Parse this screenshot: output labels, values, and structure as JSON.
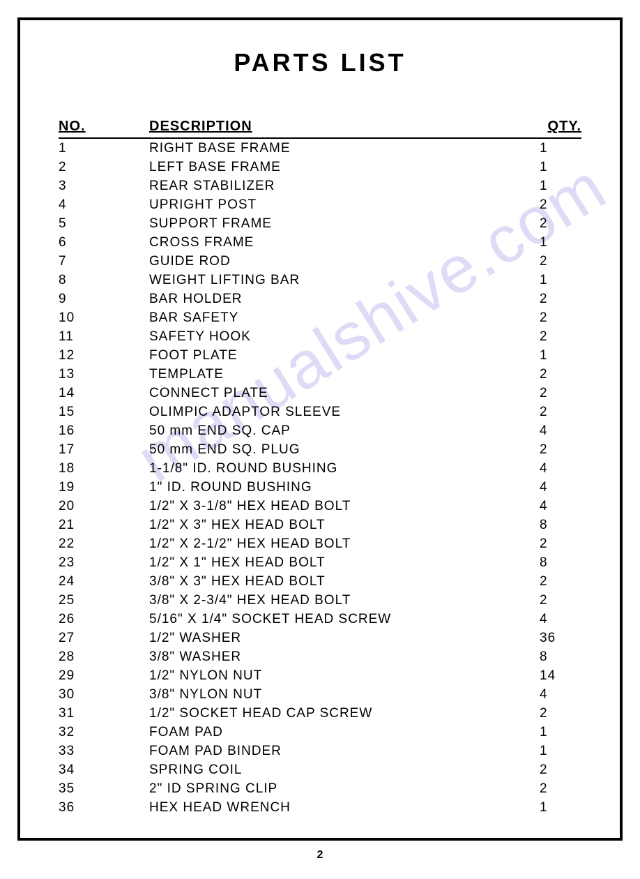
{
  "title": "PARTS  LIST",
  "columns": {
    "no": "NO.",
    "description": "DESCRIPTION",
    "qty": "QTY."
  },
  "rows": [
    {
      "no": "1",
      "description": "RIGHT BASE FRAME",
      "qty": "1"
    },
    {
      "no": "2",
      "description": "LEFT BASE FRAME",
      "qty": "1"
    },
    {
      "no": "3",
      "description": "REAR STABILIZER",
      "qty": "1"
    },
    {
      "no": "4",
      "description": "UPRIGHT POST",
      "qty": "2"
    },
    {
      "no": "5",
      "description": "SUPPORT FRAME",
      "qty": "2"
    },
    {
      "no": "6",
      "description": "CROSS FRAME",
      "qty": "1"
    },
    {
      "no": "7",
      "description": "GUIDE ROD",
      "qty": "2"
    },
    {
      "no": "8",
      "description": "WEIGHT LIFTING BAR",
      "qty": "1"
    },
    {
      "no": "9",
      "description": "BAR HOLDER",
      "qty": "2"
    },
    {
      "no": "10",
      "description": "BAR SAFETY",
      "qty": "2"
    },
    {
      "no": "11",
      "description": "SAFETY HOOK",
      "qty": "2"
    },
    {
      "no": "12",
      "description": "FOOT PLATE",
      "qty": "1"
    },
    {
      "no": "13",
      "description": "TEMPLATE",
      "qty": "2"
    },
    {
      "no": "14",
      "description": "CONNECT PLATE",
      "qty": "2"
    },
    {
      "no": "15",
      "description": "OLIMPIC ADAPTOR SLEEVE",
      "qty": "2"
    },
    {
      "no": "16",
      "description": "50 mm END SQ. CAP",
      "qty": "4"
    },
    {
      "no": "17",
      "description": "50 mm END SQ. PLUG",
      "qty": "2"
    },
    {
      "no": "18",
      "description": "1-1/8\" ID. ROUND BUSHING",
      "qty": "4"
    },
    {
      "no": "19",
      "description": "1\" ID. ROUND BUSHING",
      "qty": "4"
    },
    {
      "no": "20",
      "description": "1/2\" X 3-1/8\" HEX HEAD BOLT",
      "qty": "4"
    },
    {
      "no": "21",
      "description": "1/2\" X 3\" HEX HEAD BOLT",
      "qty": "8"
    },
    {
      "no": "22",
      "description": "1/2\" X 2-1/2\" HEX HEAD BOLT",
      "qty": "2"
    },
    {
      "no": "23",
      "description": "1/2\" X 1\" HEX HEAD BOLT",
      "qty": "8"
    },
    {
      "no": "24",
      "description": "3/8\" X 3\" HEX HEAD BOLT",
      "qty": "2"
    },
    {
      "no": "25",
      "description": "3/8\" X 2-3/4\" HEX HEAD BOLT",
      "qty": "2"
    },
    {
      "no": "26",
      "description": "5/16\" X 1/4\" SOCKET HEAD SCREW",
      "qty": "4"
    },
    {
      "no": "27",
      "description": "1/2\" WASHER",
      "qty": "36"
    },
    {
      "no": "28",
      "description": "3/8\" WASHER",
      "qty": "8"
    },
    {
      "no": "29",
      "description": "1/2\" NYLON NUT",
      "qty": "14"
    },
    {
      "no": "30",
      "description": "3/8\" NYLON NUT",
      "qty": "4"
    },
    {
      "no": "31",
      "description": "1/2\" SOCKET HEAD CAP SCREW",
      "qty": "2"
    },
    {
      "no": "32",
      "description": "FOAM PAD",
      "qty": "1"
    },
    {
      "no": "33",
      "description": "FOAM PAD BINDER",
      "qty": "1"
    },
    {
      "no": "34",
      "description": "SPRING COIL",
      "qty": "2"
    },
    {
      "no": "35",
      "description": "2\" ID SPRING CLIP",
      "qty": "2"
    },
    {
      "no": "36",
      "description": "HEX HEAD WRENCH",
      "qty": "1"
    }
  ],
  "page_number": "2",
  "watermark": "manualshive.com",
  "style": {
    "border_color": "#000000",
    "border_width": 4,
    "title_fontsize": 36,
    "header_fontsize": 20,
    "row_fontsize": 19,
    "watermark_color": "#c2bef0",
    "background_color": "#ffffff",
    "text_color": "#000000"
  }
}
